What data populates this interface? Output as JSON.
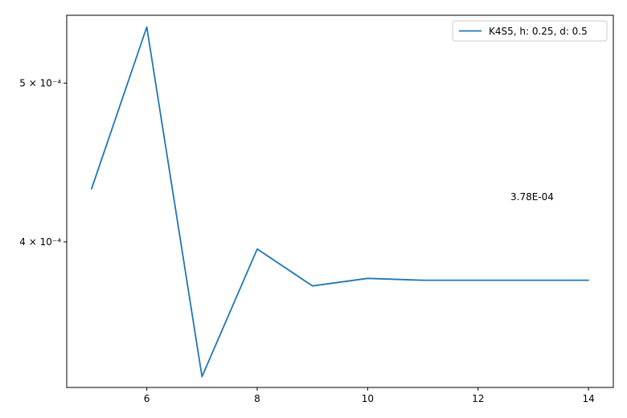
{
  "chart_data": {
    "type": "line",
    "title": "",
    "xlabel": "",
    "ylabel": "",
    "y_scale": "log",
    "grid": false,
    "legend_position": "top-right",
    "xlim": [
      4.55,
      14.45
    ],
    "ylim": [
      0.000326,
      0.00055
    ],
    "xticks": [
      6,
      8,
      10,
      12,
      14
    ],
    "xtick_labels": [
      "6",
      "8",
      "10",
      "12",
      "14"
    ],
    "yticks": [
      0.0004,
      0.0005
    ],
    "ytick_labels": [
      "4 × 10⁻⁴",
      "5 × 10⁻⁴"
    ],
    "series": [
      {
        "name": "K4S5, h: 0.25, d: 0.5",
        "color": "#1f77b4",
        "x": [
          5,
          6,
          7,
          8,
          9,
          10,
          11,
          12,
          13,
          14
        ],
        "y": [
          0.000431,
          0.000541,
          0.000331,
          0.000396,
          0.000376,
          0.00038,
          0.000379,
          0.000379,
          0.000379,
          0.000379
        ]
      }
    ],
    "annotations": [
      {
        "text": "3.78E-04"
      }
    ]
  }
}
